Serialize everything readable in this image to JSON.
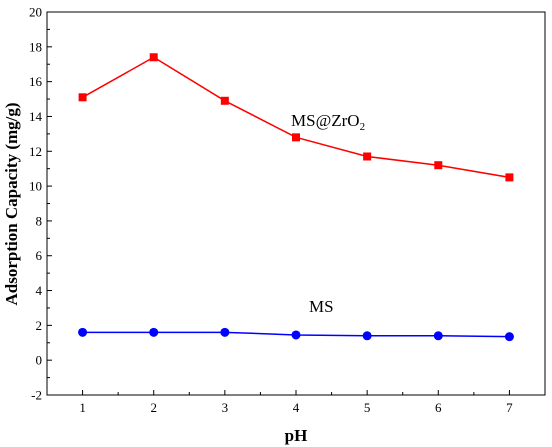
{
  "chart_data": {
    "type": "line",
    "xlabel": "pH",
    "ylabel": "Adsorption Capacity (mg/g)",
    "x": [
      1,
      2,
      3,
      4,
      5,
      6,
      7
    ],
    "xlim": [
      0.5,
      7.5
    ],
    "ylim": [
      -2,
      20
    ],
    "xticks": [
      "1",
      "2",
      "3",
      "4",
      "5",
      "6",
      "7"
    ],
    "yticks": [
      "-2",
      "0",
      "2",
      "4",
      "6",
      "8",
      "10",
      "12",
      "14",
      "16",
      "18",
      "20"
    ],
    "grid": false,
    "legend": "none",
    "series": [
      {
        "name": "MS@ZrO",
        "name_subscript": "2",
        "color": "#ff0000",
        "marker": "square",
        "values": [
          15.1,
          17.4,
          14.9,
          12.8,
          11.7,
          11.2,
          10.5
        ]
      },
      {
        "name": "MS",
        "color": "#0000ff",
        "marker": "circle",
        "values": [
          1.6,
          1.6,
          1.6,
          1.45,
          1.4,
          1.4,
          1.35
        ]
      }
    ]
  }
}
